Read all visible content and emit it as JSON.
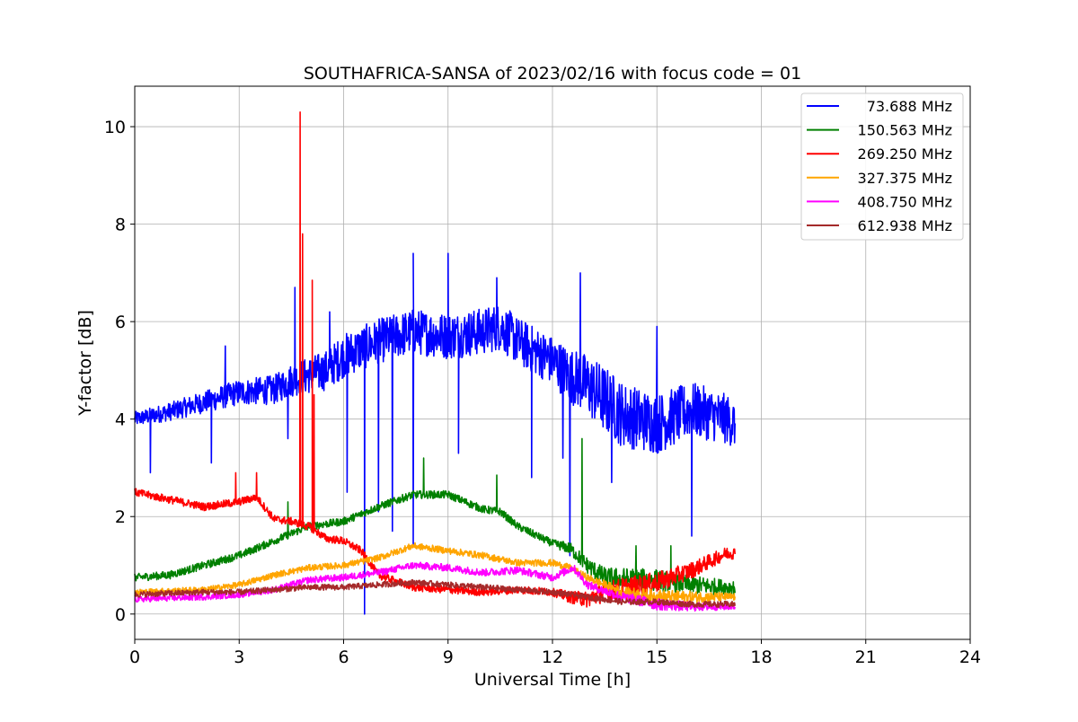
{
  "chart_data": {
    "type": "line",
    "title": "SOUTHAFRICA-SANSA of 2023/02/16 with focus code = 01",
    "xlabel": "Universal Time [h]",
    "ylabel": "Y-factor [dB]",
    "xlim": [
      0,
      24
    ],
    "ylim": [
      -0.52,
      10.83
    ],
    "xticks": [
      0,
      3,
      6,
      9,
      12,
      15,
      18,
      21,
      24
    ],
    "yticks": [
      0,
      2,
      4,
      6,
      8,
      10
    ],
    "grid": true,
    "legend_position": "top-right",
    "series": [
      {
        "name": " 73.688 MHz",
        "color": "#0000ff",
        "x": [
          0,
          1,
          2,
          3,
          4,
          4.5,
          5,
          5.5,
          6,
          7,
          8,
          9,
          10,
          10.5,
          11,
          12,
          12.5,
          13,
          13.5,
          14,
          15,
          16,
          17,
          17.25
        ],
        "y": [
          4.0,
          4.15,
          4.35,
          4.55,
          4.6,
          4.8,
          4.9,
          5.0,
          5.3,
          5.6,
          5.8,
          5.7,
          5.8,
          5.9,
          5.6,
          5.2,
          4.9,
          4.7,
          4.4,
          4.1,
          3.9,
          4.2,
          4.0,
          3.9
        ],
        "noise": [
          [
            0,
            0.15
          ],
          [
            4,
            0.3
          ],
          [
            6,
            0.45
          ],
          [
            12,
            0.5
          ],
          [
            13.5,
            0.7
          ],
          [
            17.25,
            0.5
          ]
        ],
        "spikes": [
          [
            0.45,
            2.9
          ],
          [
            2.2,
            3.1
          ],
          [
            2.6,
            5.5
          ],
          [
            4.4,
            3.6
          ],
          [
            4.6,
            6.7
          ],
          [
            5.6,
            6.2
          ],
          [
            6.1,
            2.5
          ],
          [
            6.6,
            0.0
          ],
          [
            7.0,
            2.1
          ],
          [
            7.4,
            1.7
          ],
          [
            8.0,
            1.4
          ],
          [
            8.0,
            7.4
          ],
          [
            9.0,
            7.4
          ],
          [
            9.3,
            3.3
          ],
          [
            10.4,
            6.9
          ],
          [
            11.4,
            2.8
          ],
          [
            12.3,
            3.2
          ],
          [
            12.5,
            1.2
          ],
          [
            12.8,
            7.0
          ],
          [
            13.7,
            2.7
          ],
          [
            15.0,
            5.9
          ],
          [
            16.0,
            1.6
          ]
        ]
      },
      {
        "name": "150.563 MHz",
        "color": "#008000",
        "x": [
          0,
          1,
          2,
          3,
          4,
          5,
          6,
          7,
          8,
          9,
          10,
          10.5,
          11,
          12,
          12.5,
          13,
          13.5,
          14,
          15,
          16,
          17,
          17.25
        ],
        "y": [
          0.75,
          0.8,
          1.0,
          1.2,
          1.5,
          1.8,
          1.9,
          2.2,
          2.45,
          2.45,
          2.15,
          2.1,
          1.8,
          1.45,
          1.35,
          1.0,
          0.75,
          0.7,
          0.7,
          0.6,
          0.55,
          0.55
        ],
        "noise": [
          [
            0,
            0.08
          ],
          [
            12,
            0.08
          ],
          [
            14,
            0.25
          ],
          [
            17.25,
            0.15
          ]
        ],
        "spikes": [
          [
            4.4,
            2.3
          ],
          [
            8.3,
            3.2
          ],
          [
            10.4,
            2.85
          ],
          [
            12.85,
            3.6
          ],
          [
            14.4,
            1.4
          ],
          [
            15.4,
            1.4
          ]
        ]
      },
      {
        "name": "269.250 MHz",
        "color": "#ff0000",
        "x": [
          0,
          1,
          2,
          3,
          3.5,
          4,
          4.5,
          5,
          5.5,
          6,
          6.5,
          7,
          8,
          9,
          10,
          11,
          12,
          12.5,
          13,
          13.5,
          14,
          15,
          16,
          17,
          17.25
        ],
        "y": [
          2.5,
          2.35,
          2.2,
          2.3,
          2.4,
          1.95,
          1.9,
          1.8,
          1.55,
          1.5,
          1.3,
          0.8,
          0.55,
          0.5,
          0.45,
          0.5,
          0.45,
          0.35,
          0.3,
          0.45,
          0.5,
          0.65,
          0.9,
          1.25,
          1.25
        ],
        "noise": [
          [
            0,
            0.08
          ],
          [
            12,
            0.08
          ],
          [
            14,
            0.25
          ],
          [
            17.25,
            0.12
          ]
        ],
        "spikes": [
          [
            2.9,
            2.9
          ],
          [
            3.5,
            2.9
          ],
          [
            4.75,
            10.3
          ],
          [
            4.82,
            7.8
          ],
          [
            5.1,
            6.85
          ],
          [
            5.15,
            4.5
          ]
        ]
      },
      {
        "name": "327.375 MHz",
        "color": "#ffa500",
        "x": [
          0,
          2,
          3,
          4,
          5,
          6,
          7,
          8,
          9,
          10,
          11,
          12,
          12.5,
          13,
          14,
          15,
          16,
          17,
          17.25
        ],
        "y": [
          0.45,
          0.5,
          0.6,
          0.8,
          0.95,
          1.0,
          1.15,
          1.4,
          1.3,
          1.2,
          1.05,
          1.05,
          0.95,
          0.75,
          0.45,
          0.35,
          0.35,
          0.35,
          0.35
        ],
        "noise": [
          [
            0,
            0.06
          ],
          [
            13,
            0.07
          ],
          [
            15,
            0.15
          ],
          [
            17.25,
            0.08
          ]
        ],
        "spikes": []
      },
      {
        "name": "408.750 MHz",
        "color": "#ff00ff",
        "x": [
          0,
          2,
          3,
          4,
          5,
          6,
          7,
          8,
          9,
          10,
          11,
          12,
          12.6,
          13,
          14,
          15,
          16,
          17,
          17.25
        ],
        "y": [
          0.3,
          0.35,
          0.4,
          0.5,
          0.7,
          0.75,
          0.85,
          1.0,
          0.95,
          0.85,
          0.9,
          0.75,
          0.95,
          0.6,
          0.35,
          0.2,
          0.15,
          0.15,
          0.15
        ],
        "noise": [
          [
            0,
            0.06
          ],
          [
            13,
            0.08
          ],
          [
            15,
            0.12
          ],
          [
            17.25,
            0.06
          ]
        ],
        "spikes": []
      },
      {
        "name": "612.938 MHz",
        "color": "#a52a2a",
        "x": [
          0,
          2,
          3,
          4,
          5,
          6,
          7,
          8,
          9,
          10,
          11,
          12,
          13,
          14,
          15,
          16,
          17,
          17.25
        ],
        "y": [
          0.4,
          0.45,
          0.45,
          0.5,
          0.55,
          0.55,
          0.6,
          0.65,
          0.6,
          0.55,
          0.5,
          0.45,
          0.35,
          0.25,
          0.25,
          0.2,
          0.2,
          0.2
        ],
        "noise": [
          [
            0,
            0.06
          ],
          [
            17.25,
            0.06
          ]
        ],
        "spikes": []
      }
    ]
  }
}
